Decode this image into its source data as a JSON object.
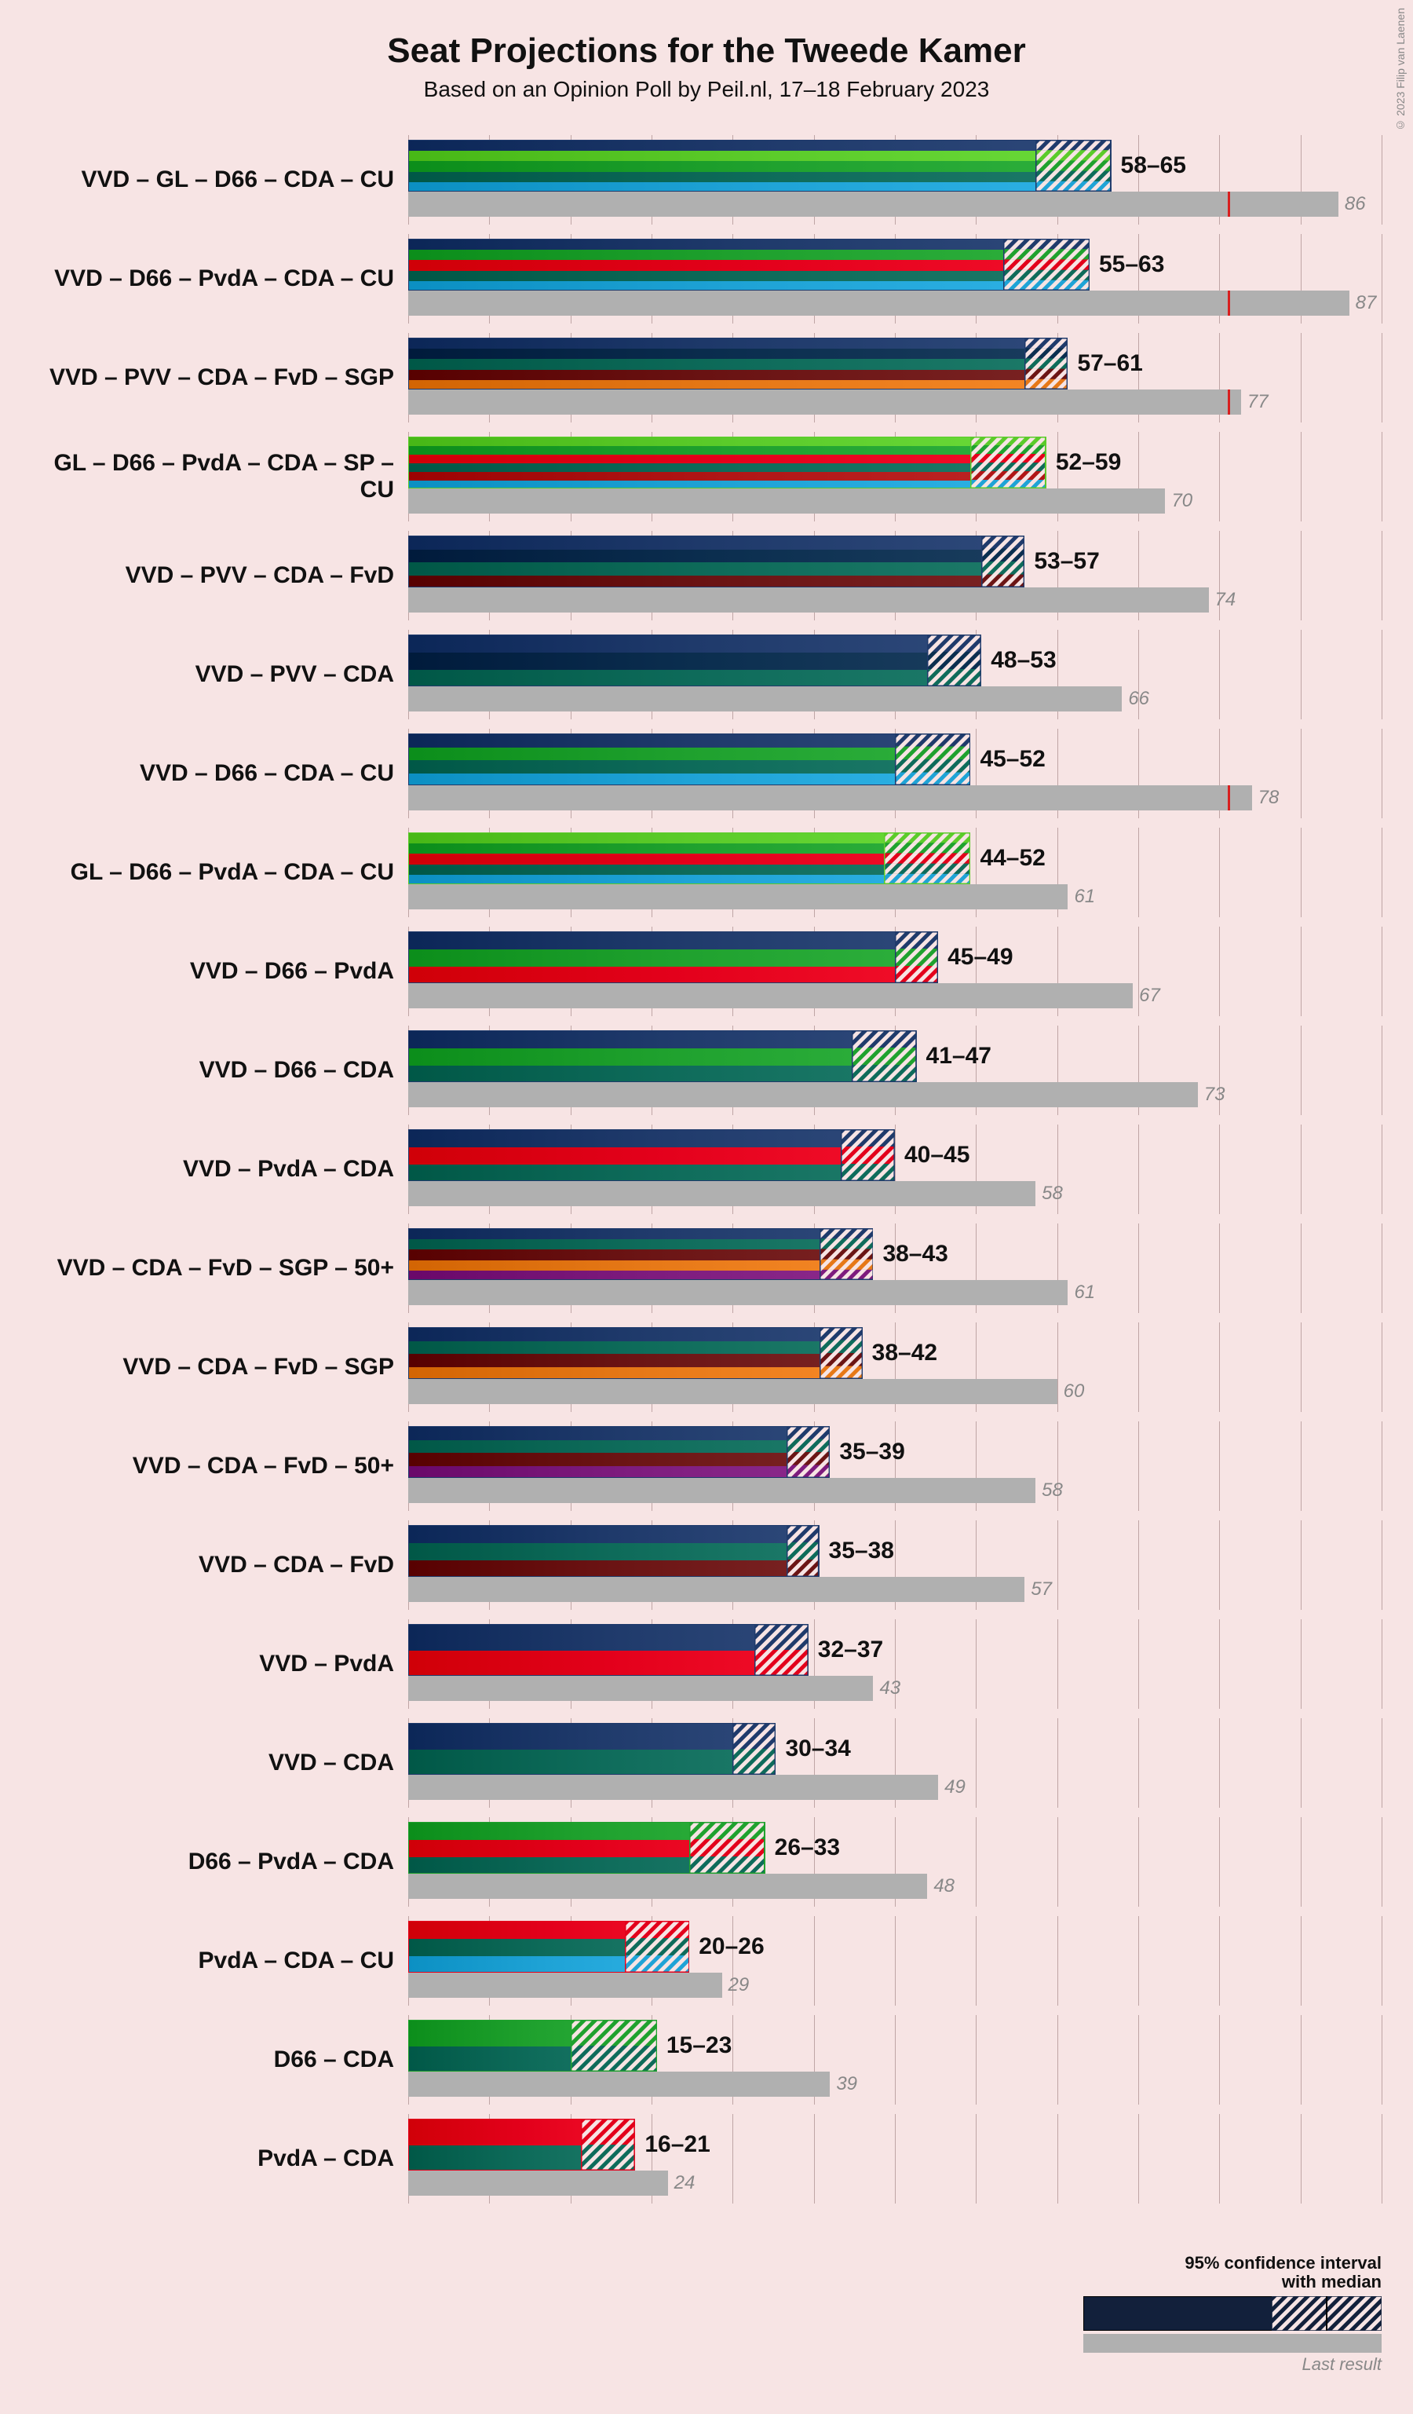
{
  "title": "Seat Projections for the Tweede Kamer",
  "subtitle": "Based on an Opinion Poll by Peil.nl, 17–18 February 2023",
  "copyright": "© 2023 Filip van Laenen",
  "x_max": 90,
  "grid_step": 7.5,
  "majority_line": 76,
  "party_colors": {
    "VVD": "#1f3a6b",
    "GL": "#5bcb2a",
    "D66": "#1fa12e",
    "CDA": "#0e6b5a",
    "CU": "#1fa3d6",
    "PvdA": "#e3001b",
    "PVV": "#0b2e4f",
    "FvD": "#6b1414",
    "SGP": "#e67817",
    "SP": "#b01616",
    "50PLUS": "#7d1b7d"
  },
  "last_bar_color": "#b0b0b0",
  "majority_marker_color": "#d81f1f",
  "background_color": "#f7e4e4",
  "grid_color": "#bfa5a5",
  "legend": {
    "ci_label_line1": "95% confidence interval",
    "ci_label_line2": "with median",
    "last_label": "Last result"
  },
  "rows": [
    {
      "label": "VVD – GL – D66 – CDA – CU",
      "parties": [
        "VVD",
        "GL",
        "D66",
        "CDA",
        "CU"
      ],
      "low": 58,
      "high": 65,
      "median": 62,
      "last": 86
    },
    {
      "label": "VVD – D66 – PvdA – CDA – CU",
      "parties": [
        "VVD",
        "D66",
        "PvdA",
        "CDA",
        "CU"
      ],
      "low": 55,
      "high": 63,
      "median": 59,
      "last": 87
    },
    {
      "label": "VVD – PVV – CDA – FvD – SGP",
      "parties": [
        "VVD",
        "PVV",
        "CDA",
        "FvD",
        "SGP"
      ],
      "low": 57,
      "high": 61,
      "median": 59,
      "last": 77
    },
    {
      "label": "GL – D66 – PvdA – CDA – SP – CU",
      "parties": [
        "GL",
        "D66",
        "PvdA",
        "CDA",
        "SP",
        "CU"
      ],
      "low": 52,
      "high": 59,
      "median": 56,
      "last": 70
    },
    {
      "label": "VVD – PVV – CDA – FvD",
      "parties": [
        "VVD",
        "PVV",
        "CDA",
        "FvD"
      ],
      "low": 53,
      "high": 57,
      "median": 55,
      "last": 74
    },
    {
      "label": "VVD – PVV – CDA",
      "parties": [
        "VVD",
        "PVV",
        "CDA"
      ],
      "low": 48,
      "high": 53,
      "median": 50,
      "last": 66
    },
    {
      "label": "VVD – D66 – CDA – CU",
      "parties": [
        "VVD",
        "D66",
        "CDA",
        "CU"
      ],
      "low": 45,
      "high": 52,
      "median": 48,
      "last": 78
    },
    {
      "label": "GL – D66 – PvdA – CDA – CU",
      "parties": [
        "GL",
        "D66",
        "PvdA",
        "CDA",
        "CU"
      ],
      "low": 44,
      "high": 52,
      "median": 48,
      "last": 61
    },
    {
      "label": "VVD – D66 – PvdA",
      "parties": [
        "VVD",
        "D66",
        "PvdA"
      ],
      "low": 45,
      "high": 49,
      "median": 47,
      "last": 67
    },
    {
      "label": "VVD – D66 – CDA",
      "parties": [
        "VVD",
        "D66",
        "CDA"
      ],
      "low": 41,
      "high": 47,
      "median": 44,
      "last": 73
    },
    {
      "label": "VVD – PvdA – CDA",
      "parties": [
        "VVD",
        "PvdA",
        "CDA"
      ],
      "low": 40,
      "high": 45,
      "median": 43,
      "last": 58
    },
    {
      "label": "VVD – CDA – FvD – SGP – 50+",
      "parties": [
        "VVD",
        "CDA",
        "FvD",
        "SGP",
        "50PLUS"
      ],
      "low": 38,
      "high": 43,
      "median": 41,
      "last": 61
    },
    {
      "label": "VVD – CDA – FvD – SGP",
      "parties": [
        "VVD",
        "CDA",
        "FvD",
        "SGP"
      ],
      "low": 38,
      "high": 42,
      "median": 40,
      "last": 60
    },
    {
      "label": "VVD – CDA – FvD – 50+",
      "parties": [
        "VVD",
        "CDA",
        "FvD",
        "50PLUS"
      ],
      "low": 35,
      "high": 39,
      "median": 37,
      "last": 58
    },
    {
      "label": "VVD – CDA – FvD",
      "parties": [
        "VVD",
        "CDA",
        "FvD"
      ],
      "low": 35,
      "high": 38,
      "median": 36,
      "last": 57
    },
    {
      "label": "VVD – PvdA",
      "parties": [
        "VVD",
        "PvdA"
      ],
      "low": 32,
      "high": 37,
      "median": 34,
      "last": 43
    },
    {
      "label": "VVD – CDA",
      "parties": [
        "VVD",
        "CDA"
      ],
      "low": 30,
      "high": 34,
      "median": 32,
      "last": 49
    },
    {
      "label": "D66 – PvdA – CDA",
      "parties": [
        "D66",
        "PvdA",
        "CDA"
      ],
      "low": 26,
      "high": 33,
      "median": 30,
      "last": 48
    },
    {
      "label": "PvdA – CDA – CU",
      "parties": [
        "PvdA",
        "CDA",
        "CU"
      ],
      "low": 20,
      "high": 26,
      "median": 23,
      "last": 29
    },
    {
      "label": "D66 – CDA",
      "parties": [
        "D66",
        "CDA"
      ],
      "low": 15,
      "high": 23,
      "median": 19,
      "last": 39
    },
    {
      "label": "PvdA – CDA",
      "parties": [
        "PvdA",
        "CDA"
      ],
      "low": 16,
      "high": 21,
      "median": 19,
      "last": 24
    }
  ]
}
